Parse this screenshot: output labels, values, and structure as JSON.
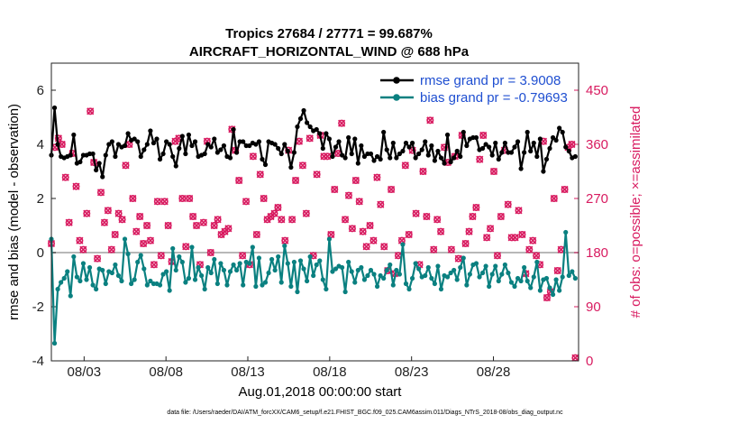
{
  "chart_data": {
    "type": "line",
    "title": "Tropics 27684 / 27771 = 99.687%",
    "subtitle": "AIRCRAFT_HORIZONTAL_WIND @ 688 hPa",
    "xlabel": "Aug.01,2018 00:00:00 start",
    "ylabel": "rmse and bias (model - observation)",
    "ylabel_right": "# of obs: o=possible; ×=assimilated",
    "xlim": [
      1,
      33.2
    ],
    "ylim": [
      -4,
      7
    ],
    "ylim_right": [
      0,
      495
    ],
    "x_tick_labels": [
      "08/03",
      "08/08",
      "08/13",
      "08/18",
      "08/23",
      "08/28"
    ],
    "x_tick_values": [
      3,
      8,
      13,
      18,
      23,
      28
    ],
    "y_ticks": [
      -4,
      -2,
      0,
      2,
      4,
      6
    ],
    "y_ticks_right": [
      0,
      90,
      180,
      270,
      360,
      450
    ],
    "zero_line": 0,
    "legend": [
      {
        "name": "rmse grand pr = 3.9008",
        "color": "#000000"
      },
      {
        "name": "bias grand pr = -0.79693",
        "color": "#0a8080"
      }
    ],
    "series": [
      {
        "name": "rmse",
        "color": "#000000",
        "values": [
          3.6,
          5.35,
          4.0,
          3.55,
          3.5,
          3.55,
          3.6,
          4.35,
          3.3,
          3.35,
          3.6,
          3.6,
          3.65,
          3.65,
          3.05,
          3.3,
          2.8,
          3.6,
          4.0,
          4.1,
          3.55,
          4.0,
          3.9,
          3.95,
          4.4,
          4.15,
          4.2,
          4.1,
          3.55,
          3.8,
          4.0,
          4.5,
          4.05,
          4.2,
          3.45,
          3.65,
          4.1,
          4.0,
          3.55,
          3.2,
          3.85,
          4.3,
          3.65,
          4.35,
          3.95,
          4.1,
          3.55,
          3.6,
          3.65,
          4.0,
          3.9,
          4.2,
          3.7,
          3.8,
          3.95,
          3.55,
          3.5,
          4.55,
          3.7,
          4.1,
          4.1,
          3.95,
          3.95,
          4.05,
          4.0,
          4.1,
          3.45,
          3.25,
          4.1,
          4.05,
          4.0,
          3.85,
          3.65,
          4.0,
          3.75,
          3.15,
          3.7,
          4.65,
          4.95,
          5.25,
          4.8,
          4.65,
          4.5,
          4.55,
          4.4,
          3.85,
          4.4,
          4.2,
          3.55,
          3.9,
          4.1,
          3.6,
          3.5,
          4.25,
          3.65,
          4.2,
          3.3,
          3.95,
          3.55,
          3.65,
          3.65,
          3.4,
          3.55,
          3.45,
          4.45,
          3.8,
          3.5,
          4.05,
          3.5,
          3.65,
          3.75,
          4.05,
          3.9,
          4.05,
          3.5,
          3.65,
          3.8,
          4.1,
          3.6,
          3.95,
          3.4,
          3.75,
          3.5,
          3.3,
          4.35,
          3.35,
          3.5,
          3.75,
          3.55,
          4.45,
          3.95,
          4.2,
          4.25,
          4.25,
          3.8,
          3.85,
          4.0,
          3.9,
          3.6,
          4.05,
          3.45,
          3.7,
          4.05,
          3.7,
          3.7,
          3.9,
          4.1,
          3.1,
          3.7,
          4.45,
          3.75,
          4.05,
          3.55,
          4.2,
          3.0,
          3.45,
          3.85,
          4.25,
          4.15,
          4.6,
          4.45,
          3.9,
          3.75,
          3.5,
          3.55
        ]
      },
      {
        "name": "bias",
        "color": "#0a8080",
        "values": [
          0.5,
          -3.35,
          -1.35,
          -1.1,
          -0.95,
          -0.7,
          -1.6,
          -0.15,
          -0.9,
          -1.05,
          -0.4,
          -1.0,
          -0.55,
          -1.2,
          -1.35,
          -0.6,
          -0.65,
          -1.15,
          -0.7,
          -0.75,
          -0.45,
          -0.85,
          -1.05,
          0.5,
          -0.05,
          -1.15,
          -1.0,
          -0.35,
          -0.1,
          -0.6,
          -1.2,
          -1.05,
          -1.15,
          -1.15,
          -1.2,
          -0.8,
          -0.7,
          -1.4,
          0.15,
          -0.65,
          -0.15,
          -0.35,
          -1.1,
          -0.95,
          0.2,
          -1.0,
          -0.55,
          -0.85,
          -1.35,
          -0.55,
          -0.75,
          -0.25,
          -1.15,
          -0.4,
          -0.65,
          -1.2,
          -0.7,
          -0.45,
          -0.65,
          -0.4,
          -1.2,
          -0.35,
          -0.4,
          0.2,
          -1.25,
          -0.2,
          -1.2,
          -1.1,
          -0.75,
          -0.25,
          -0.65,
          -0.15,
          -1.1,
          0.25,
          -0.4,
          -1.25,
          -0.35,
          -1.45,
          -0.3,
          -0.6,
          -1.05,
          -0.15,
          -0.85,
          -0.45,
          -0.3,
          -1.0,
          -1.35,
          0.5,
          -0.7,
          -0.6,
          -0.5,
          -0.55,
          -1.45,
          -0.35,
          -0.7,
          -1.1,
          -0.65,
          -0.55,
          -1.0,
          -0.85,
          -0.65,
          -0.8,
          -1.25,
          -0.85,
          -0.95,
          -0.65,
          -0.45,
          -1.2,
          -0.65,
          -0.8,
          0.3,
          -1.15,
          -1.35,
          -0.95,
          -0.4,
          -0.6,
          -0.9,
          -0.85,
          -0.55,
          -0.95,
          -1.15,
          -0.5,
          -1.35,
          -0.85,
          -0.9,
          -0.75,
          -0.65,
          -1.0,
          -0.55,
          -0.2,
          -1.2,
          -0.8,
          -0.45,
          -0.4,
          -0.9,
          -0.75,
          -0.5,
          -1.25,
          -0.8,
          -0.5,
          -1.05,
          -0.8,
          -0.45,
          -0.75,
          -1.1,
          -1.25,
          -0.95,
          -1.05,
          -0.55,
          -1.05,
          -1.3,
          -0.9,
          -0.35,
          -1.4,
          -1.0,
          -0.95,
          -1.3,
          -1.55,
          -1.0,
          -1.4,
          -0.9,
          0.75,
          -0.85,
          -0.7,
          -0.95
        ]
      },
      {
        "name": "# of obs possible",
        "color": "#d81b60",
        "marker": "o",
        "axis": "right",
        "values": [
          195,
          355,
          370,
          360,
          305,
          230,
          345,
          290,
          200,
          185,
          245,
          415,
          330,
          170,
          280,
          230,
          250,
          185,
          210,
          245,
          235,
          325,
          360,
          270,
          215,
          240,
          195,
          225,
          200,
          160,
          265,
          175,
          265,
          225,
          165,
          365,
          370,
          270,
          190,
          270,
          240,
          225,
          160,
          230,
          365,
          180,
          225,
          235,
          210,
          215,
          220,
          385,
          350,
          300,
          175,
          265,
          160,
          340,
          210,
          310,
          270,
          235,
          240,
          245,
          255,
          235,
          200,
          350,
          235,
          300,
          365,
          325,
          245,
          370,
          175,
          310,
          375,
          340,
          340,
          210,
          285,
          345,
          395,
          235,
          275,
          220,
          300,
          265,
          215,
          190,
          225,
          200,
          305,
          260,
          190,
          150,
          285,
          145,
          175,
          200,
          325,
          210,
          350,
          245,
          160,
          315,
          240,
          400,
          185,
          235,
          215,
          355,
          330,
          185,
          340,
          170,
          375,
          195,
          215,
          240,
          255,
          335,
          375,
          205,
          220,
          315,
          175,
          240,
          350,
          260,
          205,
          205,
          250,
          210,
          145,
          185,
          200,
          175,
          160,
          365,
          105,
          115,
          270,
          150,
          185,
          285,
          355,
          360,
          5
        ]
      }
    ]
  },
  "footer": "data file: /Users/raeder/DAI/ATM_forcXX/CAM6_setup/f.e21.FHIST_BGC.f09_025.CAM6assim.011/Diags_NTrS_2018-08/obs_diag_output.nc"
}
